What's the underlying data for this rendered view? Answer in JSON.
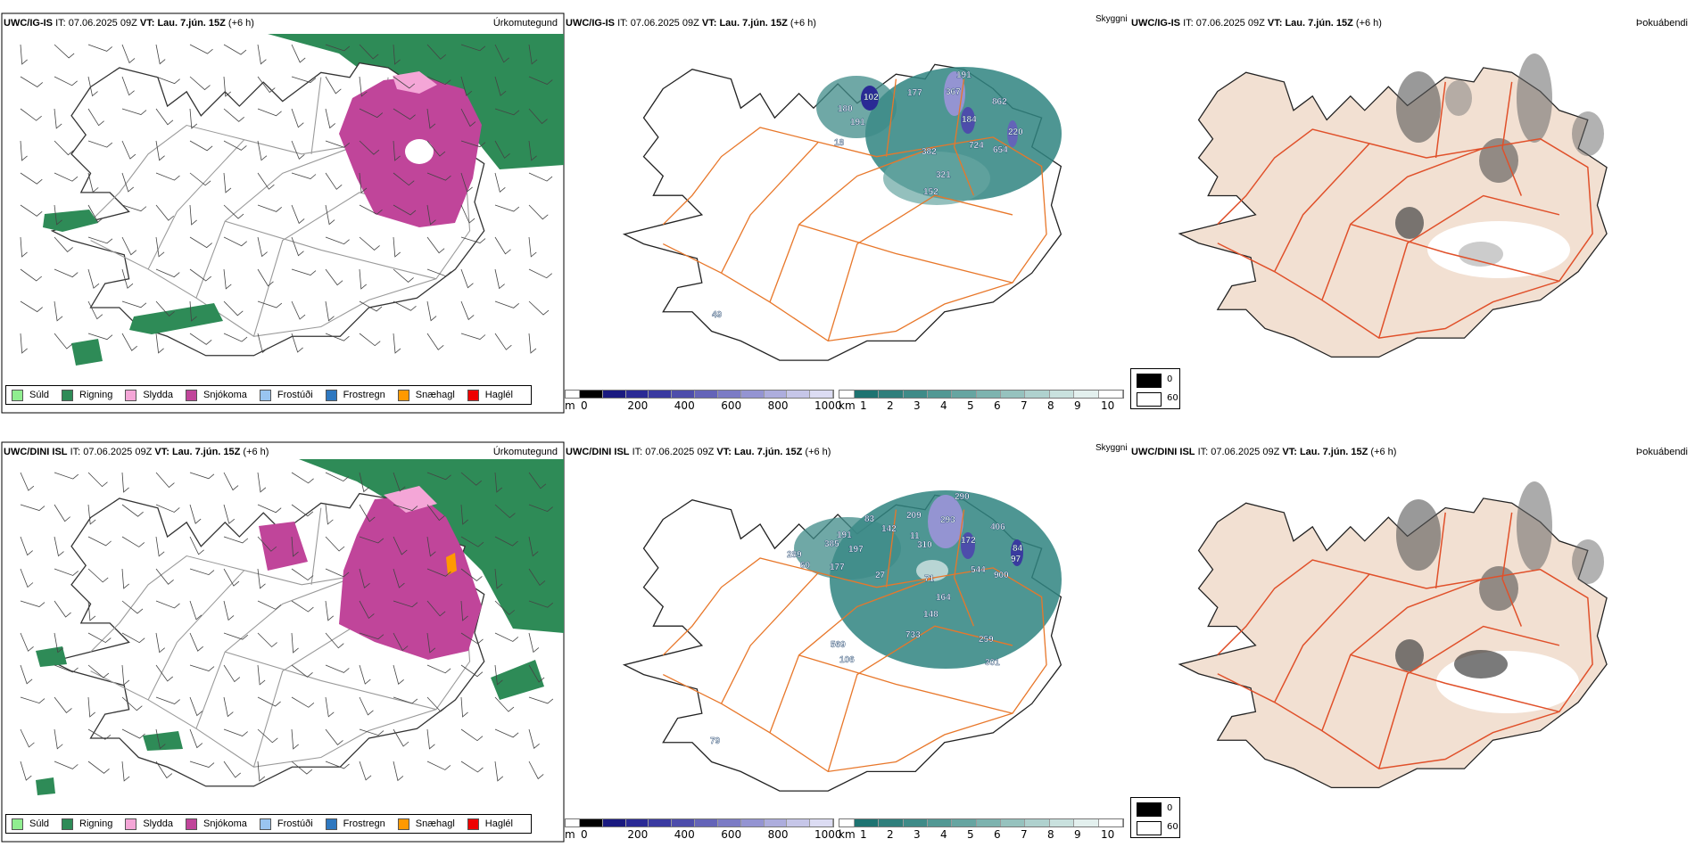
{
  "rows": [
    {
      "model": "UWC/IG-IS",
      "it_label": "IT:",
      "it_value": "07.06.2025 09Z",
      "vt_label": "VT:",
      "vt_value": "Lau. 7.jún. 15Z",
      "lead": "(+6 h)",
      "vis_labels": [
        "191",
        "367",
        "862",
        "184",
        "220",
        "724",
        "654",
        "382",
        "321",
        "152",
        "102",
        "180",
        "191",
        "177",
        "18",
        "49"
      ]
    },
    {
      "model": "UWC/DINI ISL",
      "it_label": "IT:",
      "it_value": "07.06.2025 09Z",
      "vt_label": "VT:",
      "vt_value": "Lau. 7.jún. 15Z",
      "lead": "(+6 h)",
      "vis_labels": [
        "290",
        "293",
        "209",
        "83",
        "142",
        "191",
        "385",
        "197",
        "289",
        "60",
        "177",
        "11",
        "310",
        "172",
        "406",
        "84",
        "97",
        "544",
        "900",
        "27",
        "71",
        "164",
        "148",
        "733",
        "259",
        "569",
        "106",
        "301",
        "79"
      ]
    }
  ],
  "panel_titles": {
    "precip": "Úrkomutegund",
    "visibility": "Skyggni",
    "fog": "Þokuábendi"
  },
  "precip_legend": [
    {
      "label": "Súld",
      "color": "#90ee90"
    },
    {
      "label": "Rigning",
      "color": "#2e8b57"
    },
    {
      "label": "Slydda",
      "color": "#f4a6d7"
    },
    {
      "label": "Snjókoma",
      "color": "#c0459a"
    },
    {
      "label": "Frostúði",
      "color": "#99c4f0"
    },
    {
      "label": "Frostregn",
      "color": "#2e78c0"
    },
    {
      "label": "Snæhagl",
      "color": "#ff9900"
    },
    {
      "label": "Haglél",
      "color": "#ee0000"
    }
  ],
  "height_bar": {
    "unit": "m",
    "ticks": [
      "0",
      "200",
      "400",
      "600",
      "800",
      "1000"
    ],
    "colors": [
      "#000000",
      "#1a1a80",
      "#2a2a95",
      "#3a3aa0",
      "#4d4dab",
      "#6464b8",
      "#7b7bc5",
      "#9494d2",
      "#adaddd",
      "#c6c6e8",
      "#dcdcf3"
    ]
  },
  "vis_bar": {
    "unit": "km",
    "ticks": [
      "1",
      "2",
      "3",
      "4",
      "5",
      "6",
      "7",
      "8",
      "9",
      "10"
    ],
    "colors": [
      "#1e7371",
      "#2f7f7c",
      "#3f8b88",
      "#529894",
      "#66a5a1",
      "#7db3af",
      "#96c2be",
      "#afd1ce",
      "#c9e1de",
      "#e3f0ee",
      "#ffffff"
    ]
  },
  "fog_legend": {
    "min": "0",
    "max": "60"
  },
  "colors": {
    "sea_rain": "#2e8b57",
    "snow": "#c0459a",
    "teal": "#2f8480",
    "road": "#e8772a",
    "land_fog": "#f2e0d2"
  }
}
